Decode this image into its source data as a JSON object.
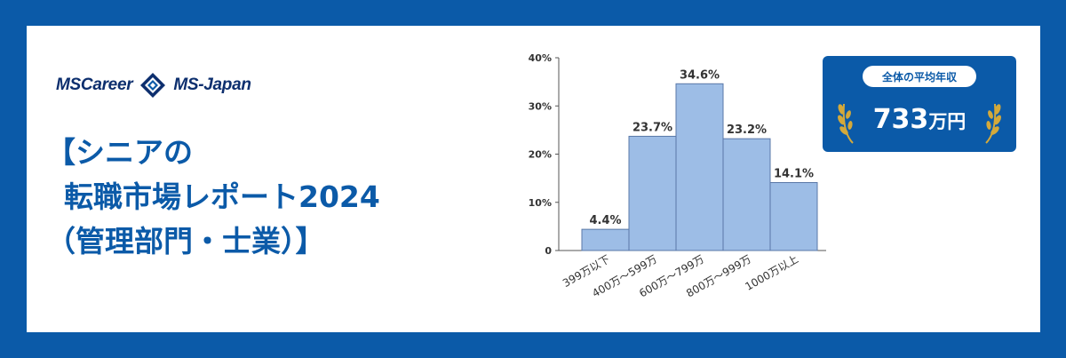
{
  "brand": {
    "left_logo": "MSCareer",
    "right_logo": "MS-Japan",
    "mark_icon": "ms-diamond-logo-icon"
  },
  "title": {
    "line1": "【シニアの",
    "line2": "転職市場レポート2024",
    "line3": "（管理部門・士業）】"
  },
  "badge": {
    "label": "全体の平均年収",
    "value": "733",
    "unit": "万円",
    "icon": "laurel-wreath-icon"
  },
  "colors": {
    "frame": "#0b5aa8",
    "bar_fill": "#9dbde6",
    "bar_stroke": "#5a78a8",
    "title": "#0b5aa8",
    "wreath": "#d4a93a"
  },
  "chart_data": {
    "type": "bar",
    "categories": [
      "399万以下",
      "400万～599万",
      "600万～799万",
      "800万～999万",
      "1000万以上"
    ],
    "values": [
      4.4,
      23.7,
      34.6,
      23.2,
      14.1
    ],
    "data_labels": [
      "4.4%",
      "23.7%",
      "34.6%",
      "23.2%",
      "14.1%"
    ],
    "yticks": [
      "0",
      "10%",
      "20%",
      "30%",
      "40%"
    ],
    "ylim": [
      0,
      40
    ],
    "ystep": 10,
    "grid": false,
    "title": "",
    "xlabel": "",
    "ylabel": ""
  }
}
